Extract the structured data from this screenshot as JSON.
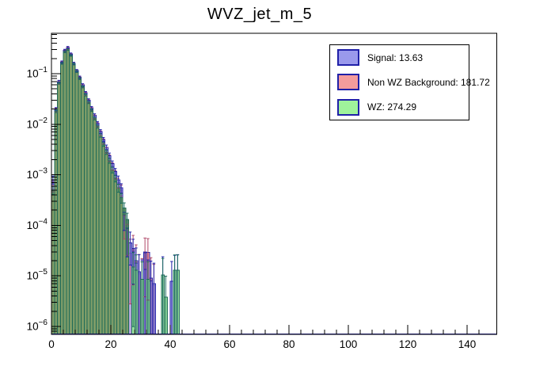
{
  "chart_data": {
    "type": "bar",
    "subtype": "overlaid-log-histogram",
    "title": "WVZ_jet_m_5",
    "x": {
      "min": 0,
      "max": 150,
      "major_tick_step": 20,
      "minor_tick_step": 4,
      "tick_labels": [
        "0",
        "20",
        "40",
        "60",
        "80",
        "100",
        "120",
        "140"
      ]
    },
    "y": {
      "scale": "log",
      "top": 0.63,
      "bottom": 7e-07,
      "decade_exponents": [
        -1,
        -2,
        -3,
        -4,
        -5,
        -6
      ]
    },
    "bin_width": 1,
    "grid": false,
    "legend_position": "top-right",
    "series": [
      {
        "name": "signal",
        "label": "Signal: 13.63",
        "legend_fill": "#9a99ec",
        "legend_border": "#2020a8",
        "fill": "#a9aaec",
        "fill_opacity": 0.8,
        "border": "#2222aa",
        "err_color": "#2222aa",
        "err_rel_base": 0.04,
        "err_rel_coef": 0.004,
        "err_rel_max": 1.6,
        "values": [
          0.0008,
          0.02,
          0.07,
          0.17,
          0.29,
          0.33,
          0.245,
          0.16,
          0.115,
          0.085,
          0.06,
          0.042,
          0.03,
          0.021,
          0.015,
          0.0105,
          0.0072,
          0.005,
          0.0035,
          0.0024,
          0.00165,
          0.00115,
          0.0008,
          0.00055,
          0.00013,
          5.6e-05,
          4.5e-05,
          3e-05,
          1.8e-05,
          1.2e-05,
          8.6e-06,
          1.35e-05,
          8.6e-06,
          8e-06,
          7e-06,
          0,
          0,
          1.05e-05,
          0,
          0,
          7.8e-06,
          1.15e-05,
          1.2e-05,
          0,
          0
        ]
      },
      {
        "name": "non_wz_background",
        "label": "Non WZ Background: 181.72",
        "legend_fill": "#f49c9c",
        "legend_border": "#2020a8",
        "fill": "#f09da0",
        "fill_opacity": 1,
        "border": "#2222aa",
        "err_color": "#b04a6a",
        "err_rel_base": 0.05,
        "err_rel_coef": 0.0045,
        "err_rel_max": 1.6,
        "values": [
          0.0006,
          0.019,
          0.066,
          0.165,
          0.28,
          0.315,
          0.235,
          0.158,
          0.112,
          0.082,
          0.057,
          0.04,
          0.0285,
          0.0198,
          0.014,
          0.0098,
          0.0067,
          0.0046,
          0.0031,
          0.00215,
          0.00148,
          0.00102,
          0.0007,
          0.0005,
          0.000105,
          6.5e-05,
          2.8e-05,
          3.5e-05,
          2e-05,
          1.1e-05,
          8.5e-06,
          3e-05,
          2.9e-05,
          9e-06,
          6.5e-06,
          0,
          0,
          0,
          0,
          0,
          0,
          0,
          0,
          0,
          0
        ]
      },
      {
        "name": "wz",
        "label": "WZ: 274.29",
        "legend_fill": "#9ff29b",
        "legend_border": "#2020a8",
        "fill": "#7d9c68",
        "fill_tail": "#a5eda5",
        "tail_start": 26,
        "fill_opacity": 1,
        "border": "#1f6b57",
        "err_color": "#1d6e5e",
        "err_rel_base": 0.03,
        "err_rel_coef": 0.0035,
        "err_rel_max": 1.6,
        "values": [
          0.0005,
          0.018,
          0.065,
          0.16,
          0.27,
          0.3,
          0.23,
          0.155,
          0.11,
          0.08,
          0.055,
          0.038,
          0.027,
          0.019,
          0.013,
          0.009,
          0.006,
          0.004,
          0.0028,
          0.0019,
          0.00125,
          0.00085,
          0.00055,
          0.00035,
          0.00022,
          0.00013,
          0,
          1.5e-05,
          1.3e-05,
          0,
          8.5e-06,
          0,
          8.6e-06,
          0,
          0,
          0,
          0,
          1.05e-05,
          3.8e-06,
          0,
          0,
          1.3e-05,
          1.3e-05,
          0,
          0
        ]
      }
    ],
    "plot": {
      "frame_color": "#000000",
      "baseline_color": "#2222aa",
      "background": "#ffffff",
      "tick_color": "#000000",
      "label_color": "#000000"
    }
  }
}
